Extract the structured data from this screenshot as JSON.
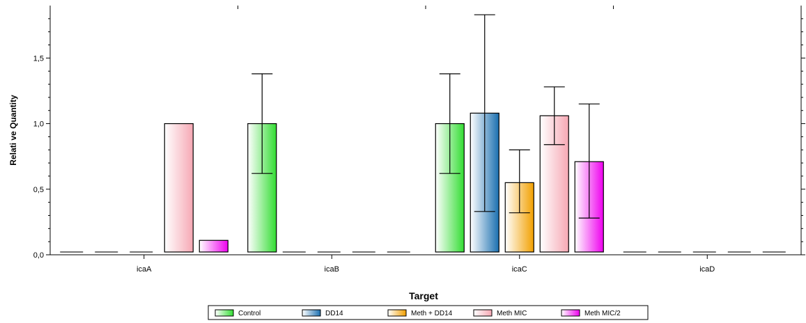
{
  "chart_data": {
    "type": "bar",
    "title": "",
    "xlabel": "Target",
    "ylabel": "Relati ve Quantity",
    "categories": [
      "icaA",
      "icaB",
      "icaC",
      "icaD"
    ],
    "ylim": [
      0,
      1.9
    ],
    "yticks": [
      0.0,
      0.5,
      1.0,
      1.5
    ],
    "ytick_labels": [
      "0,0",
      "0,5",
      "1,0",
      "1,5"
    ],
    "grid": false,
    "legend_position": "bottom-center",
    "series": [
      {
        "name": "Control",
        "color": "#33dd33",
        "values": [
          null,
          1.0,
          1.0,
          null
        ],
        "errors": [
          null,
          [
            0.62,
            1.38
          ],
          [
            0.62,
            1.38
          ],
          null
        ]
      },
      {
        "name": "DD14",
        "color": "#1a6fb0",
        "values": [
          null,
          null,
          1.08,
          null
        ],
        "errors": [
          null,
          null,
          [
            0.33,
            1.83
          ],
          null
        ]
      },
      {
        "name": "Meth + DD14",
        "color": "#f2a000",
        "values": [
          null,
          null,
          0.55,
          null
        ],
        "errors": [
          null,
          null,
          [
            0.32,
            0.8
          ],
          null
        ]
      },
      {
        "name": "Meth MIC",
        "color": "#f6a8b4",
        "values": [
          1.0,
          null,
          1.06,
          null
        ],
        "errors": [
          null,
          null,
          [
            0.84,
            1.28
          ],
          null
        ]
      },
      {
        "name": "Meth MIC/2",
        "color": "#ee00ee",
        "values": [
          0.11,
          null,
          0.71,
          null
        ],
        "errors": [
          null,
          null,
          [
            0.28,
            1.15
          ],
          null
        ]
      }
    ]
  }
}
